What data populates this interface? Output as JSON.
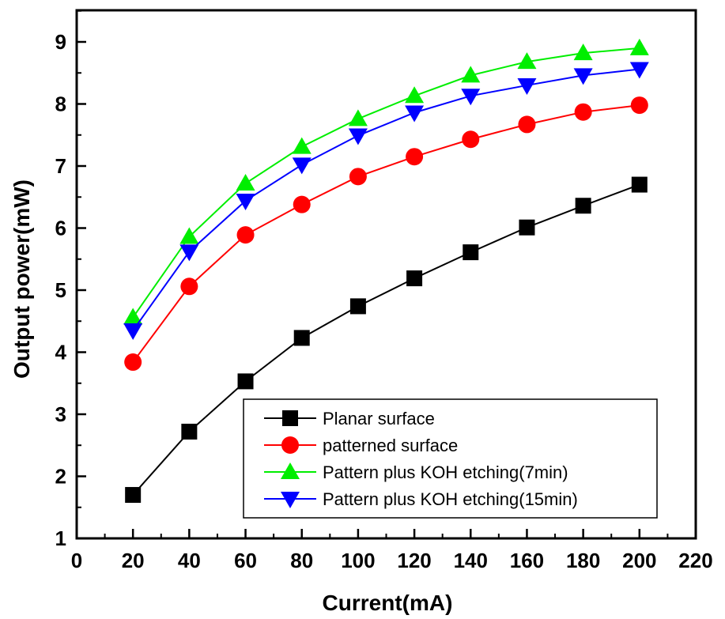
{
  "chart_data": {
    "type": "line",
    "title": "",
    "xlabel": "Current(mA)",
    "ylabel": "Output power(mW)",
    "xlim": [
      0,
      220
    ],
    "ylim": [
      1,
      9.5
    ],
    "xticks": [
      0,
      20,
      40,
      60,
      80,
      100,
      120,
      140,
      160,
      180,
      200,
      220
    ],
    "yticks": [
      1,
      2,
      3,
      4,
      5,
      6,
      7,
      8,
      9
    ],
    "grid": false,
    "legend_position": "bottom-right",
    "x": [
      20,
      40,
      60,
      80,
      100,
      120,
      140,
      160,
      180,
      200
    ],
    "series": [
      {
        "name": "Planar surface",
        "marker": "square",
        "color": "#000000",
        "values": [
          1.7,
          2.72,
          3.53,
          4.23,
          4.74,
          5.19,
          5.61,
          6.01,
          6.36,
          6.7
        ]
      },
      {
        "name": "patterned surface",
        "marker": "circle",
        "color": "#ff0000",
        "values": [
          3.84,
          5.06,
          5.89,
          6.38,
          6.83,
          7.15,
          7.43,
          7.67,
          7.87,
          7.98
        ]
      },
      {
        "name": "Pattern plus KOH etching(7min)",
        "marker": "triangle-up",
        "color": "#00ee00",
        "values": [
          4.56,
          5.86,
          6.72,
          7.31,
          7.76,
          8.13,
          8.46,
          8.68,
          8.82,
          8.9
        ]
      },
      {
        "name": "Pattern plus KOH etching(15min)",
        "marker": "triangle-down",
        "color": "#0000ff",
        "values": [
          4.35,
          5.62,
          6.44,
          7.02,
          7.49,
          7.86,
          8.13,
          8.3,
          8.46,
          8.56
        ]
      }
    ]
  }
}
